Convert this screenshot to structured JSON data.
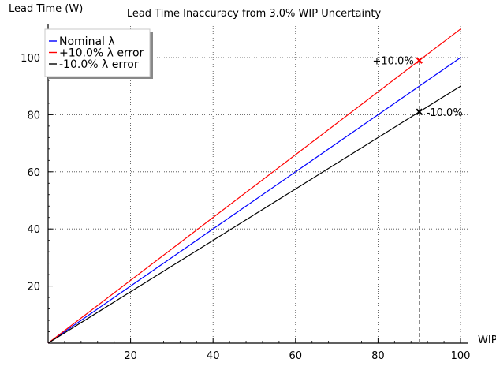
{
  "chart_data": {
    "type": "line",
    "title": "Lead Time Inaccuracy from 3.0% WIP Uncertainty",
    "xlabel": "WIP",
    "ylabel": "Lead Time (W)",
    "xlim": [
      0,
      100
    ],
    "ylim": [
      0,
      110
    ],
    "xticks": [
      20,
      40,
      60,
      80,
      100
    ],
    "yticks": [
      20,
      40,
      60,
      80,
      100
    ],
    "grid": true,
    "legend_position": "top-left",
    "series": [
      {
        "name": "Nominal λ",
        "color": "#0000ff",
        "x": [
          0,
          100
        ],
        "y": [
          0,
          100
        ]
      },
      {
        "name": "+10.0% λ error",
        "color": "#ff0000",
        "x": [
          0,
          100
        ],
        "y": [
          0,
          110
        ]
      },
      {
        "name": "-10.0% λ error",
        "color": "#000000",
        "x": [
          0,
          100
        ],
        "y": [
          0,
          90
        ]
      }
    ],
    "markers": [
      {
        "x": 90,
        "y": 99,
        "color": "#ff0000",
        "label": "+10.0%"
      },
      {
        "x": 90,
        "y": 81,
        "color": "#000000",
        "label": "-10.0%"
      }
    ],
    "reference_line": {
      "x": 90,
      "y_from": 0,
      "y_to": 99,
      "color": "#808080",
      "style": "dashed"
    }
  }
}
